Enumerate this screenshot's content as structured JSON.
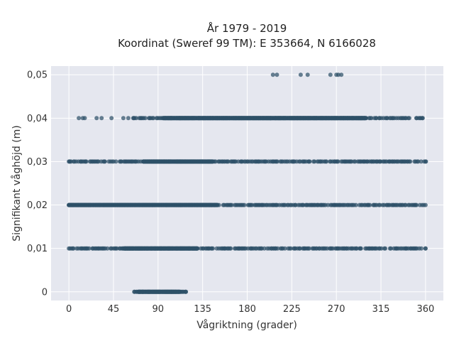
{
  "chart_data": {
    "type": "scatter",
    "title_line1": "År 1979 - 2019",
    "title_line2": "Koordinat (Sweref 99 TM): E 353664, N 6166028",
    "xlabel": "Vågriktning (grader)",
    "ylabel": "Signifikant våghöjd (m)",
    "xlim": [
      -18,
      378
    ],
    "ylim": [
      -0.002,
      0.052
    ],
    "x_ticks": [
      0,
      45,
      90,
      135,
      180,
      225,
      270,
      315,
      360
    ],
    "x_tick_labels": [
      "0",
      "45",
      "90",
      "135",
      "180",
      "225",
      "270",
      "315",
      "360"
    ],
    "y_ticks": [
      0,
      0.01,
      0.02,
      0.03,
      0.04,
      0.05
    ],
    "y_tick_labels": [
      "0",
      "0,01",
      "0,02",
      "0,03",
      "0,04",
      "0,05"
    ],
    "grid": true,
    "colors": {
      "background": "#e5e7ef",
      "grid": "#ffffff",
      "point": "#2e5068"
    },
    "series": [
      {
        "bands": [
          {
            "y": 0.0,
            "x_range": [
              66,
              118
            ],
            "dense_range": [
              70,
              112
            ]
          },
          {
            "y": 0.01,
            "x_range": [
              0,
              360
            ],
            "dense_range": [
              55,
              130
            ]
          },
          {
            "y": 0.02,
            "x_range": [
              0,
              360
            ],
            "dense_range": [
              0,
              150
            ]
          },
          {
            "y": 0.03,
            "x_range": [
              0,
              360
            ],
            "dense_range": [
              75,
              145
            ]
          },
          {
            "y": 0.04,
            "x_range": [
              65,
              357
            ],
            "dense_range": [
              95,
              300
            ]
          }
        ],
        "sparse_points": [
          [
            10,
            0.04
          ],
          [
            14,
            0.04
          ],
          [
            16,
            0.04
          ],
          [
            28,
            0.04
          ],
          [
            33,
            0.04
          ],
          [
            43,
            0.04
          ],
          [
            55,
            0.04
          ],
          [
            60,
            0.04
          ],
          [
            206,
            0.05
          ],
          [
            210,
            0.05
          ],
          [
            234,
            0.05
          ],
          [
            241,
            0.05
          ],
          [
            264,
            0.05
          ],
          [
            270,
            0.05
          ],
          [
            272,
            0.05
          ],
          [
            275,
            0.05
          ]
        ]
      }
    ]
  }
}
